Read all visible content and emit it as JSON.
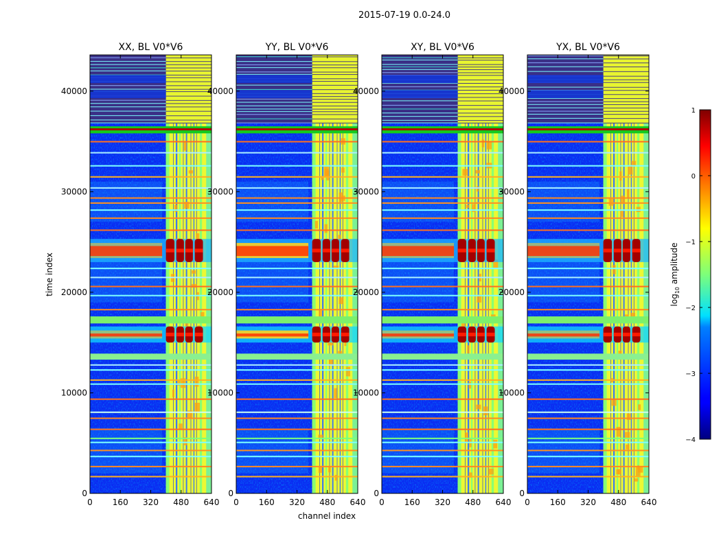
{
  "figure": {
    "suptitle": "2015-07-19 0.0-24.0",
    "xlabel": "channel index",
    "ylabel": "time index"
  },
  "chart_data": {
    "type": "heatmap",
    "colormap": "jet",
    "x_ticks": [
      "0",
      "160",
      "320",
      "480",
      "640"
    ],
    "y_ticks": [
      "0",
      "10000",
      "20000",
      "30000",
      "40000"
    ],
    "xlim": [
      0,
      640
    ],
    "ylim": [
      0,
      43600
    ],
    "panels": [
      {
        "title": "XX, BL V0*V6"
      },
      {
        "title": "YY, BL V0*V6"
      },
      {
        "title": "XY, BL V0*V6"
      },
      {
        "title": "YX, BL V0*V6"
      }
    ],
    "colorbar": {
      "label": "log10 amplitude",
      "label_base": "log",
      "label_sub": "10",
      "label_rest": " amplitude",
      "range": [
        -4,
        1
      ],
      "ticks": [
        "1",
        "0",
        "−1",
        "−2",
        "−3",
        "−4"
      ]
    },
    "rfi_channel_band": [
      400,
      640
    ],
    "bright_events_time": [
      [
        15000,
        16600
      ],
      [
        23000,
        25300
      ]
    ],
    "flagged_rows_time": [
      [
        35800,
        36500
      ],
      [
        16900,
        17600
      ],
      [
        13300,
        13900
      ]
    ],
    "noisy_block_time": [
      36800,
      43600
    ]
  }
}
